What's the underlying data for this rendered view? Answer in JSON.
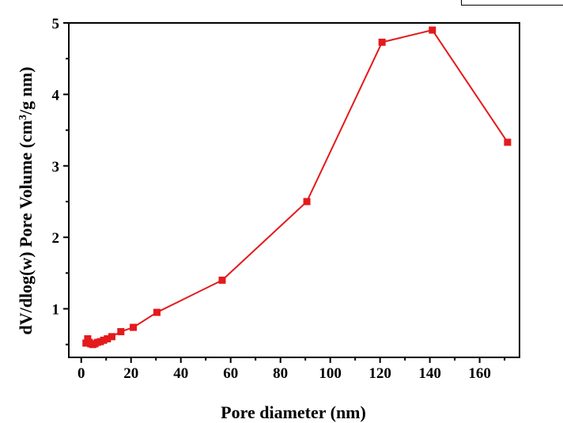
{
  "chart_data": {
    "type": "line",
    "title": "",
    "xlabel": "Pore diameter (nm)",
    "ylabel_main": "dV/dlog(w) Pore Volume (cm",
    "ylabel_sup": "3",
    "ylabel_tail": "/g nm)",
    "xlim": [
      -5,
      176
    ],
    "ylim": [
      0.32,
      5.0
    ],
    "x_ticks": [
      0,
      20,
      40,
      60,
      80,
      100,
      120,
      140,
      160
    ],
    "y_ticks": [
      1,
      2,
      3,
      4,
      5
    ],
    "grid": false,
    "series": [
      {
        "color": "#e41a1c",
        "marker": "square",
        "x": [
          1.9,
          2.6,
          3.2,
          3.8,
          4.6,
          5.5,
          6.5,
          7.7,
          9.0,
          10.5,
          12.3,
          15.9,
          20.9,
          30.4,
          56.6,
          90.6,
          120.8,
          141.0,
          171.2
        ],
        "y": [
          0.52,
          0.58,
          0.53,
          0.51,
          0.5,
          0.51,
          0.53,
          0.54,
          0.56,
          0.58,
          0.61,
          0.68,
          0.74,
          0.95,
          1.4,
          2.5,
          4.73,
          4.9,
          3.33
        ]
      }
    ]
  }
}
